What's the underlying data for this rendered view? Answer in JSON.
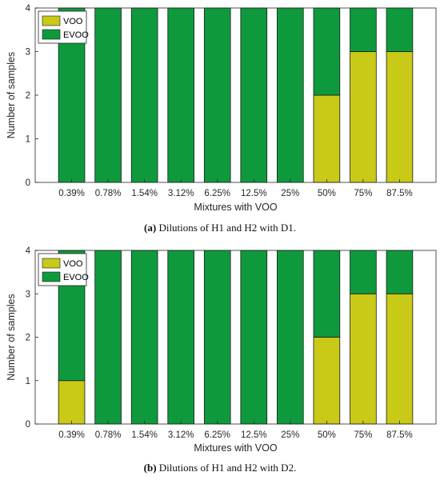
{
  "colors": {
    "voo": "#c9c918",
    "evoo": "#0e9a3c",
    "axis": "#262626",
    "edge": "#1a1a1a"
  },
  "chart_data": [
    {
      "type": "bar",
      "stacked": true,
      "caption_tag": "(a)",
      "caption_text": " Dilutions of H1 and H2 with D1.",
      "xlabel": "Mixtures with VOO",
      "ylabel": "Number of samples",
      "ylim": [
        0,
        4
      ],
      "yticks": [
        0,
        1,
        2,
        3,
        4
      ],
      "grid": false,
      "legend_position": "top-left",
      "categories": [
        "0.39%",
        "0.78%",
        "1.54%",
        "3.12%",
        "6.25%",
        "12.5%",
        "25%",
        "50%",
        "75%",
        "87.5%"
      ],
      "series": [
        {
          "name": "VOO",
          "values": [
            0,
            0,
            0,
            0,
            0,
            0,
            0,
            2,
            3,
            3
          ]
        },
        {
          "name": "EVOO",
          "values": [
            4,
            4,
            4,
            4,
            4,
            4,
            4,
            2,
            1,
            1
          ]
        }
      ]
    },
    {
      "type": "bar",
      "stacked": true,
      "caption_tag": "(b)",
      "caption_text": " Dilutions of H1 and H2 with D2.",
      "xlabel": "Mixtures with VOO",
      "ylabel": "Number of samples",
      "ylim": [
        0,
        4
      ],
      "yticks": [
        0,
        1,
        2,
        3,
        4
      ],
      "grid": false,
      "legend_position": "top-left",
      "categories": [
        "0.39%",
        "0.78%",
        "1.54%",
        "3.12%",
        "6.25%",
        "12.5%",
        "25%",
        "50%",
        "75%",
        "87.5%"
      ],
      "series": [
        {
          "name": "VOO",
          "values": [
            1,
            0,
            0,
            0,
            0,
            0,
            0,
            2,
            3,
            3
          ]
        },
        {
          "name": "EVOO",
          "values": [
            3,
            4,
            4,
            4,
            4,
            4,
            4,
            2,
            1,
            1
          ]
        }
      ]
    }
  ]
}
